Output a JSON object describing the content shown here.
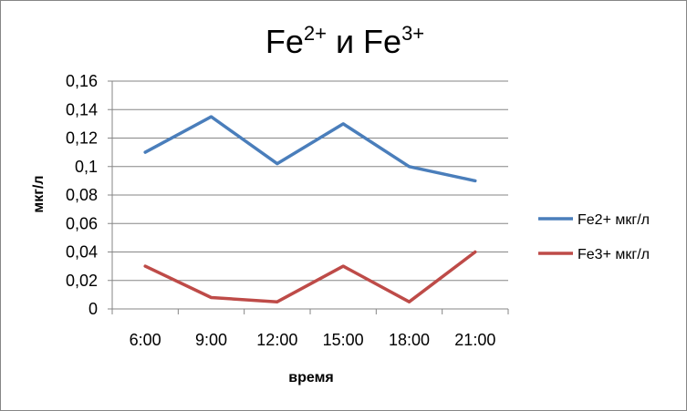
{
  "chart_data": {
    "type": "line",
    "title": {
      "base1": "Fe",
      "sup1": "2+",
      "middle": " и Fe",
      "sup2": "3+"
    },
    "xlabel": "время",
    "ylabel": "мкг/л",
    "categories": [
      "6:00",
      "9:00",
      "12:00",
      "15:00",
      "18:00",
      "21:00"
    ],
    "y_ticks": [
      "0",
      "0,02",
      "0,04",
      "0,06",
      "0,08",
      "0,1",
      "0,12",
      "0,14",
      "0,16"
    ],
    "ylim": [
      0,
      0.16
    ],
    "grid": true,
    "legend_position": "right",
    "series": [
      {
        "name": "Fe2+ мкг/л",
        "color": "#4a7ebb",
        "values": [
          0.11,
          0.135,
          0.102,
          0.13,
          0.1,
          0.09
        ]
      },
      {
        "name": "Fe3+ мкг/л",
        "color": "#be4b48",
        "values": [
          0.03,
          0.008,
          0.005,
          0.03,
          0.005,
          0.04
        ]
      }
    ]
  }
}
